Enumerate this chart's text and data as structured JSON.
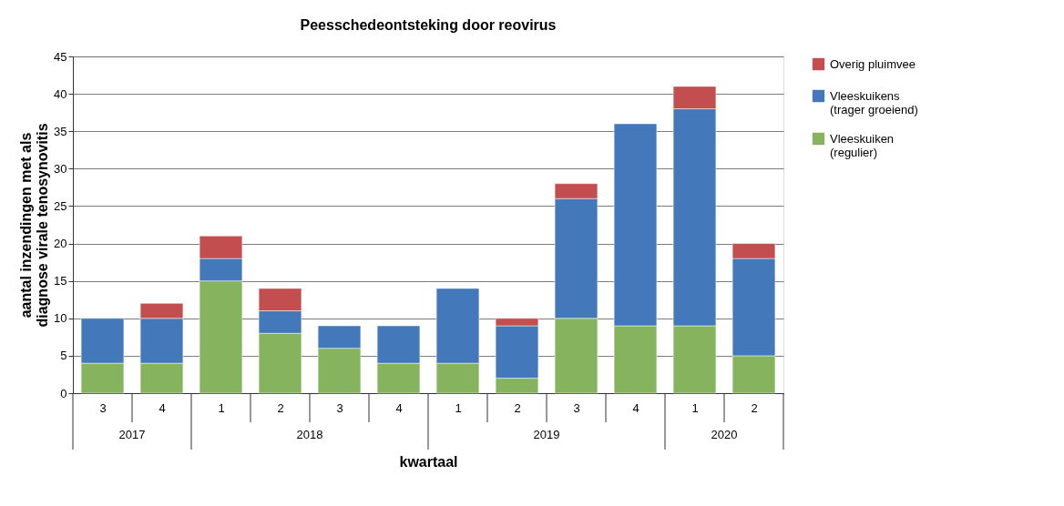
{
  "chart_data": {
    "type": "bar",
    "title": "Peesschedeontsteking door reovirus",
    "xlabel": "kwartaal",
    "ylabel": "aantal inzendingen met als\ndiagnose virale tenosynovitis",
    "categories": [
      "3",
      "4",
      "1",
      "2",
      "3",
      "4",
      "1",
      "2",
      "3",
      "4",
      "1",
      "2"
    ],
    "annotations": [
      "2017",
      "2018",
      "2019",
      "2020"
    ],
    "stacked": true,
    "series": [
      {
        "name": "Vleeskuiken (regulier)",
        "color": "#86b45e",
        "values": [
          4,
          4,
          15,
          8,
          6,
          4,
          4,
          2,
          10,
          9,
          9,
          5
        ]
      },
      {
        "name": "Vleeskuikens (trager groeiend)",
        "color": "#4379bb",
        "values": [
          6,
          6,
          3,
          3,
          3,
          5,
          10,
          7,
          16,
          27,
          29,
          13
        ]
      },
      {
        "name": "Overig pluimvee",
        "color": "#c24e4f",
        "values": [
          null,
          2,
          3,
          3,
          null,
          null,
          null,
          1,
          2,
          null,
          3,
          2
        ]
      }
    ],
    "ylim": [
      0,
      45
    ],
    "yticks": [
      0,
      5,
      10,
      15,
      20,
      25,
      30,
      35,
      40,
      45
    ],
    "grid": "y",
    "legend": "top right"
  }
}
